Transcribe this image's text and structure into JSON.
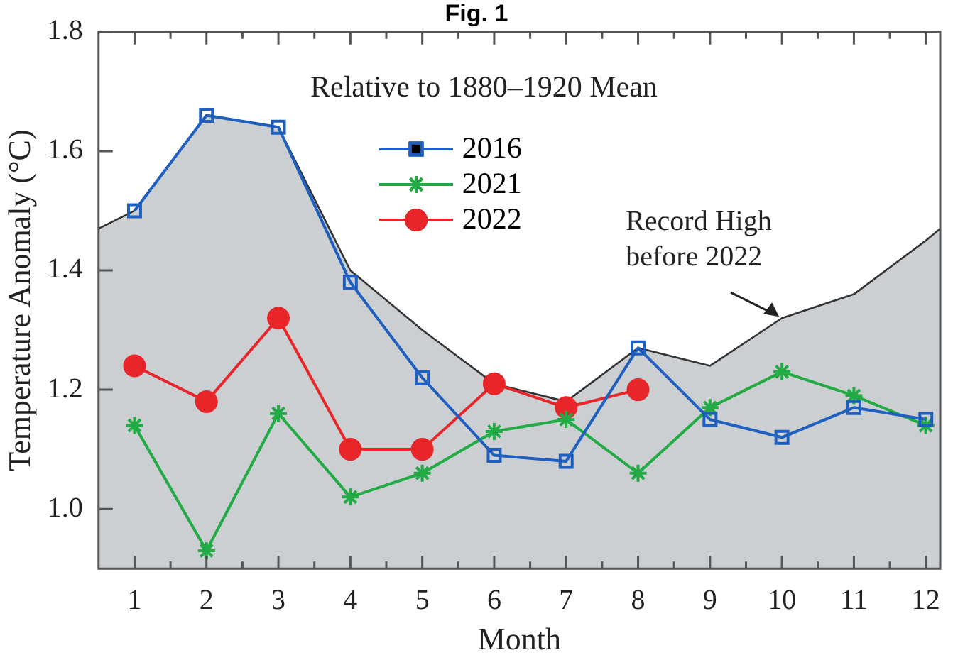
{
  "chart_data": {
    "type": "line",
    "title": "Fig. 1",
    "subtitle": "Relative to 1880–1920 Mean",
    "xlabel": "Month",
    "ylabel": "Temperature Anomaly (°C)",
    "xlim": [
      0.5,
      12.2
    ],
    "xticks": [
      1,
      2,
      3,
      4,
      5,
      6,
      7,
      8,
      9,
      10,
      11,
      12
    ],
    "ylim": [
      0.9,
      1.8
    ],
    "yticks": [
      {
        "value": 1.0,
        "label": "1.0"
      },
      {
        "value": 1.2,
        "label": "1.2"
      },
      {
        "value": 1.4,
        "label": "1.4"
      },
      {
        "value": 1.6,
        "label": "1.6"
      },
      {
        "value": 1.8,
        "label": "1.8"
      }
    ],
    "grid": false,
    "legend": "top",
    "series": [
      {
        "type": "area",
        "color": "#333333",
        "x": [
          0.5,
          1,
          2,
          3,
          4,
          5,
          6,
          7,
          8,
          9,
          10,
          11,
          12,
          12.2
        ],
        "values": [
          1.47,
          1.5,
          1.66,
          1.64,
          1.4,
          1.3,
          1.21,
          1.18,
          1.27,
          1.24,
          1.32,
          1.36,
          1.45,
          1.47
        ],
        "marker": "none"
      },
      {
        "name": "2016",
        "color": "#1f5fbf",
        "x": [
          1,
          2,
          3,
          4,
          5,
          6,
          7,
          8,
          9,
          10,
          11,
          12
        ],
        "values": [
          1.5,
          1.66,
          1.64,
          1.38,
          1.22,
          1.09,
          1.08,
          1.27,
          1.15,
          1.12,
          1.17,
          1.15
        ],
        "marker": "square"
      },
      {
        "name": "2021",
        "color": "#22aa44",
        "x": [
          1,
          2,
          3,
          4,
          5,
          6,
          7,
          8,
          9,
          10,
          11,
          12
        ],
        "values": [
          1.14,
          0.93,
          1.16,
          1.02,
          1.06,
          1.13,
          1.15,
          1.06,
          1.17,
          1.23,
          1.19,
          1.14
        ],
        "marker": "cross"
      },
      {
        "name": "2022",
        "color": "#e8262a",
        "x": [
          1,
          2,
          3,
          4,
          5,
          6,
          7,
          8
        ],
        "values": [
          1.24,
          1.18,
          1.32,
          1.1,
          1.1,
          1.21,
          1.17,
          1.2
        ],
        "marker": "circle"
      }
    ],
    "annotations": [
      {
        "text": "Record High\nbefore 2022",
        "x": 10,
        "y": 1.32
      }
    ]
  }
}
